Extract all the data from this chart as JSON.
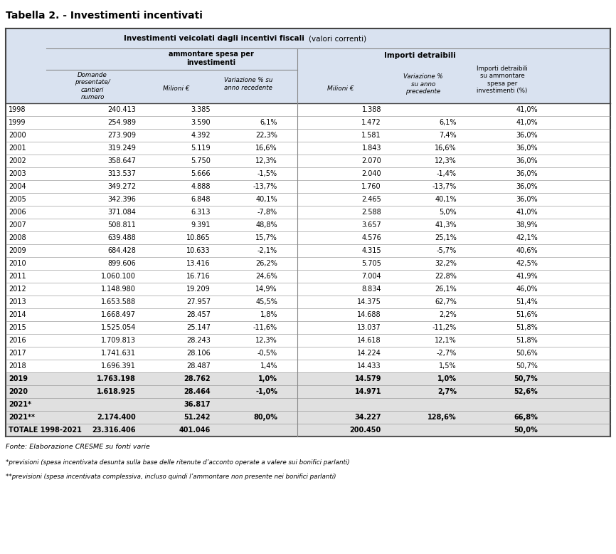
{
  "title": "Tabella 2. - Investimenti incentivati",
  "rows": [
    {
      "year": "1998",
      "d1": "240.413",
      "d2": "3.385",
      "d3": "",
      "d4": "1.388",
      "d5": "",
      "d6": "41,0%",
      "bold": false
    },
    {
      "year": "1999",
      "d1": "254.989",
      "d2": "3.590",
      "d3": "6,1%",
      "d4": "1.472",
      "d5": "6,1%",
      "d6": "41,0%",
      "bold": false
    },
    {
      "year": "2000",
      "d1": "273.909",
      "d2": "4.392",
      "d3": "22,3%",
      "d4": "1.581",
      "d5": "7,4%",
      "d6": "36,0%",
      "bold": false
    },
    {
      "year": "2001",
      "d1": "319.249",
      "d2": "5.119",
      "d3": "16,6%",
      "d4": "1.843",
      "d5": "16,6%",
      "d6": "36,0%",
      "bold": false
    },
    {
      "year": "2002",
      "d1": "358.647",
      "d2": "5.750",
      "d3": "12,3%",
      "d4": "2.070",
      "d5": "12,3%",
      "d6": "36,0%",
      "bold": false
    },
    {
      "year": "2003",
      "d1": "313.537",
      "d2": "5.666",
      "d3": "-1,5%",
      "d4": "2.040",
      "d5": "-1,4%",
      "d6": "36,0%",
      "bold": false
    },
    {
      "year": "2004",
      "d1": "349.272",
      "d2": "4.888",
      "d3": "-13,7%",
      "d4": "1.760",
      "d5": "-13,7%",
      "d6": "36,0%",
      "bold": false
    },
    {
      "year": "2005",
      "d1": "342.396",
      "d2": "6.848",
      "d3": "40,1%",
      "d4": "2.465",
      "d5": "40,1%",
      "d6": "36,0%",
      "bold": false
    },
    {
      "year": "2006",
      "d1": "371.084",
      "d2": "6.313",
      "d3": "-7,8%",
      "d4": "2.588",
      "d5": "5,0%",
      "d6": "41,0%",
      "bold": false
    },
    {
      "year": "2007",
      "d1": "508.811",
      "d2": "9.391",
      "d3": "48,8%",
      "d4": "3.657",
      "d5": "41,3%",
      "d6": "38,9%",
      "bold": false
    },
    {
      "year": "2008",
      "d1": "639.488",
      "d2": "10.865",
      "d3": "15,7%",
      "d4": "4.576",
      "d5": "25,1%",
      "d6": "42,1%",
      "bold": false
    },
    {
      "year": "2009",
      "d1": "684.428",
      "d2": "10.633",
      "d3": "-2,1%",
      "d4": "4.315",
      "d5": "-5,7%",
      "d6": "40,6%",
      "bold": false
    },
    {
      "year": "2010",
      "d1": "899.606",
      "d2": "13.416",
      "d3": "26,2%",
      "d4": "5.705",
      "d5": "32,2%",
      "d6": "42,5%",
      "bold": false
    },
    {
      "year": "2011",
      "d1": "1.060.100",
      "d2": "16.716",
      "d3": "24,6%",
      "d4": "7.004",
      "d5": "22,8%",
      "d6": "41,9%",
      "bold": false
    },
    {
      "year": "2012",
      "d1": "1.148.980",
      "d2": "19.209",
      "d3": "14,9%",
      "d4": "8.834",
      "d5": "26,1%",
      "d6": "46,0%",
      "bold": false
    },
    {
      "year": "2013",
      "d1": "1.653.588",
      "d2": "27.957",
      "d3": "45,5%",
      "d4": "14.375",
      "d5": "62,7%",
      "d6": "51,4%",
      "bold": false
    },
    {
      "year": "2014",
      "d1": "1.668.497",
      "d2": "28.457",
      "d3": "1,8%",
      "d4": "14.688",
      "d5": "2,2%",
      "d6": "51,6%",
      "bold": false
    },
    {
      "year": "2015",
      "d1": "1.525.054",
      "d2": "25.147",
      "d3": "-11,6%",
      "d4": "13.037",
      "d5": "-11,2%",
      "d6": "51,8%",
      "bold": false
    },
    {
      "year": "2016",
      "d1": "1.709.813",
      "d2": "28.243",
      "d3": "12,3%",
      "d4": "14.618",
      "d5": "12,1%",
      "d6": "51,8%",
      "bold": false
    },
    {
      "year": "2017",
      "d1": "1.741.631",
      "d2": "28.106",
      "d3": "-0,5%",
      "d4": "14.224",
      "d5": "-2,7%",
      "d6": "50,6%",
      "bold": false
    },
    {
      "year": "2018",
      "d1": "1.696.391",
      "d2": "28.487",
      "d3": "1,4%",
      "d4": "14.433",
      "d5": "1,5%",
      "d6": "50,7%",
      "bold": false
    },
    {
      "year": "2019",
      "d1": "1.763.198",
      "d2": "28.762",
      "d3": "1,0%",
      "d4": "14.579",
      "d5": "1,0%",
      "d6": "50,7%",
      "bold": true
    },
    {
      "year": "2020",
      "d1": "1.618.925",
      "d2": "28.464",
      "d3": "-1,0%",
      "d4": "14.971",
      "d5": "2,7%",
      "d6": "52,6%",
      "bold": true
    },
    {
      "year": "2021*",
      "d1": "",
      "d2": "36.817",
      "d3": "",
      "d4": "",
      "d5": "",
      "d6": "",
      "bold": true
    },
    {
      "year": "2021**",
      "d1": "2.174.400",
      "d2": "51.242",
      "d3": "80,0%",
      "d4": "34.227",
      "d5": "128,6%",
      "d6": "66,8%",
      "bold": true
    },
    {
      "year": "TOTALE 1998-2021",
      "d1": "23.316.406",
      "d2": "401.046",
      "d3": "",
      "d4": "200.450",
      "d5": "",
      "d6": "50,0%",
      "bold": true
    }
  ],
  "footer": "Fonte: Elaborazione CRESME su fonti varie",
  "footnote1": "*previsioni (spesa incentivata desunta sulla base delle ritenute d’acconto operate a valere sui bonifici parlanti)",
  "footnote2": "**previsioni (spesa incentivata complessiva, incluso quindi l’ammontare non presente nei bonifici parlanti)",
  "bg_color": "#d9e2f0",
  "bold_row_bg": "#e0e0e0",
  "line_color": "#888888",
  "border_color": "#444444"
}
